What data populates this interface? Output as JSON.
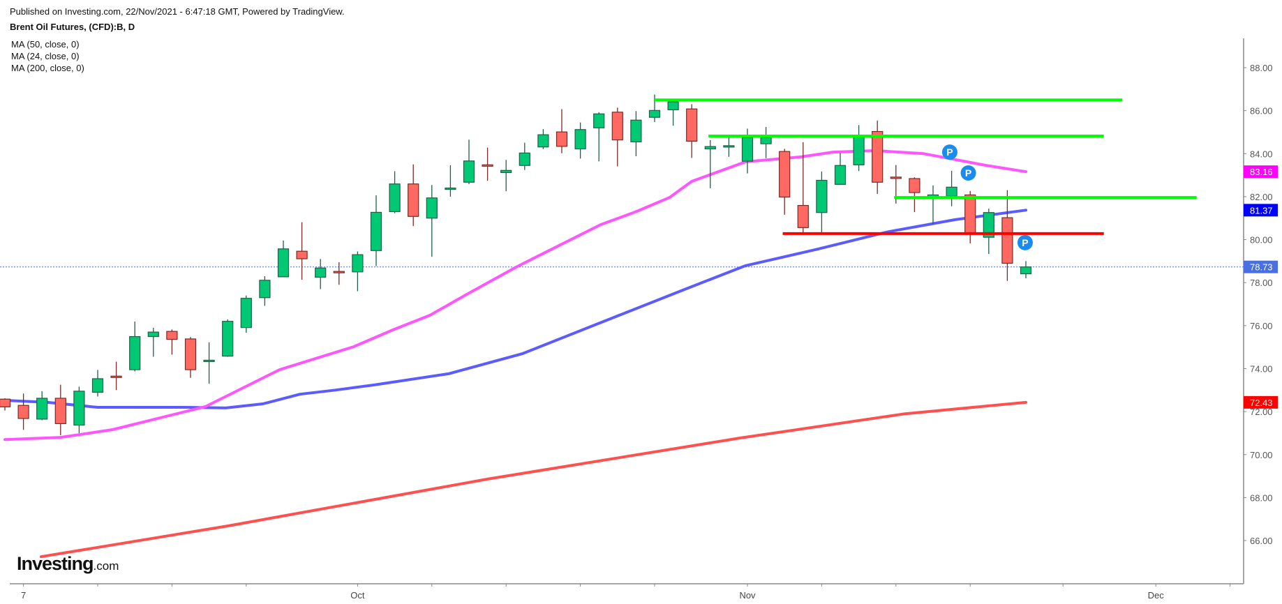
{
  "header": {
    "published": "Published on Investing.com, 22/Nov/2021 - 6:47:18 GMT, Powered by TradingView.",
    "title": "Brent Oil Futures, (CFD):B, D",
    "indicators": [
      "MA (50, close, 0)",
      "MA (24, close, 0)",
      "MA (200, close, 0)"
    ]
  },
  "logo": {
    "main": "Investing",
    "suffix": ".com"
  },
  "chart_data": {
    "type": "candlestick",
    "title": "Brent Oil Futures, (CFD):B, D",
    "ylim": [
      64.2,
      89.4
    ],
    "y_ticks": [
      "66.00",
      "68.00",
      "70.00",
      "72.00",
      "74.00",
      "76.00",
      "78.00",
      "80.00",
      "82.00",
      "84.00",
      "86.00",
      "88.00"
    ],
    "x_ticks": [
      {
        "index": 2.0,
        "label": "7"
      },
      {
        "index": 6.0,
        "label": ""
      },
      {
        "index": 10.0,
        "label": ""
      },
      {
        "index": 14.0,
        "label": ""
      },
      {
        "index": 20.0,
        "label": "Oct"
      },
      {
        "index": 24.0,
        "label": ""
      },
      {
        "index": 28.0,
        "label": ""
      },
      {
        "index": 32.0,
        "label": ""
      },
      {
        "index": 36.0,
        "label": ""
      },
      {
        "index": 41.0,
        "label": "Nov"
      },
      {
        "index": 45.0,
        "label": ""
      },
      {
        "index": 49.0,
        "label": ""
      },
      {
        "index": 53.0,
        "label": ""
      },
      {
        "index": 58.0,
        "label": ""
      },
      {
        "index": 63.0,
        "label": "Dec"
      },
      {
        "index": 67.0,
        "label": ""
      }
    ],
    "x_range": [
      0.8,
      67.7
    ],
    "candles_ohlc": [
      [
        72.58,
        72.62,
        72.05,
        72.22
      ],
      [
        72.29,
        72.84,
        71.15,
        71.68
      ],
      [
        71.65,
        72.95,
        71.6,
        72.62
      ],
      [
        72.62,
        73.25,
        70.9,
        71.44
      ],
      [
        71.37,
        73.16,
        71.0,
        72.95
      ],
      [
        72.9,
        73.94,
        72.7,
        73.53
      ],
      [
        73.65,
        74.32,
        73.0,
        73.62
      ],
      [
        73.95,
        76.19,
        73.87,
        75.49
      ],
      [
        75.49,
        75.9,
        74.55,
        75.7
      ],
      [
        75.73,
        75.82,
        74.65,
        75.36
      ],
      [
        75.38,
        75.47,
        73.57,
        73.95
      ],
      [
        74.36,
        75.22,
        73.3,
        74.39
      ],
      [
        74.58,
        76.29,
        74.55,
        76.2
      ],
      [
        75.91,
        77.4,
        75.67,
        77.27
      ],
      [
        77.3,
        78.3,
        76.92,
        78.11
      ],
      [
        78.27,
        79.96,
        78.27,
        79.57
      ],
      [
        79.46,
        80.81,
        78.13,
        79.11
      ],
      [
        78.25,
        79.1,
        77.7,
        78.68
      ],
      [
        78.52,
        78.95,
        77.9,
        78.48
      ],
      [
        78.5,
        79.45,
        77.6,
        79.3
      ],
      [
        79.49,
        82.06,
        78.77,
        81.27
      ],
      [
        81.3,
        83.18,
        81.23,
        82.59
      ],
      [
        82.59,
        83.5,
        80.63,
        81.08
      ],
      [
        81.0,
        82.54,
        79.2,
        81.94
      ],
      [
        82.36,
        83.46,
        82.0,
        82.4
      ],
      [
        82.67,
        84.65,
        82.58,
        83.66
      ],
      [
        83.48,
        84.28,
        82.74,
        83.46
      ],
      [
        83.12,
        83.71,
        82.25,
        83.22
      ],
      [
        83.45,
        84.51,
        83.24,
        84.03
      ],
      [
        84.31,
        85.14,
        84.21,
        84.88
      ],
      [
        85.01,
        86.07,
        84.02,
        84.34
      ],
      [
        84.22,
        85.45,
        83.77,
        85.12
      ],
      [
        85.2,
        85.93,
        83.64,
        85.85
      ],
      [
        85.93,
        86.14,
        83.41,
        84.64
      ],
      [
        84.55,
        85.98,
        83.88,
        85.56
      ],
      [
        85.69,
        86.75,
        85.47,
        86.01
      ],
      [
        86.04,
        86.53,
        85.3,
        86.41
      ],
      [
        86.08,
        86.3,
        83.8,
        84.58
      ],
      [
        84.22,
        84.63,
        82.39,
        84.33
      ],
      [
        84.35,
        84.87,
        83.85,
        84.37
      ],
      [
        83.65,
        85.16,
        83.08,
        84.74
      ],
      [
        84.46,
        85.24,
        83.79,
        84.75
      ],
      [
        84.1,
        84.22,
        81.16,
        81.98
      ],
      [
        81.59,
        84.53,
        80.22,
        80.56
      ],
      [
        81.26,
        83.17,
        80.3,
        82.76
      ],
      [
        82.57,
        84.03,
        82.57,
        83.45
      ],
      [
        83.48,
        85.33,
        83.19,
        84.78
      ],
      [
        85.03,
        85.54,
        82.13,
        82.67
      ],
      [
        82.91,
        83.47,
        81.68,
        82.89
      ],
      [
        82.84,
        82.9,
        81.28,
        82.19
      ],
      [
        81.95,
        82.52,
        80.71,
        82.08
      ],
      [
        82.02,
        83.2,
        81.55,
        82.44
      ],
      [
        82.08,
        82.26,
        79.82,
        80.27
      ],
      [
        80.11,
        81.44,
        79.33,
        81.26
      ],
      [
        81.02,
        82.3,
        78.08,
        78.9
      ],
      [
        78.41,
        79.0,
        78.2,
        78.73
      ]
    ],
    "series": [
      {
        "name": "MA (50, close, 0)",
        "color": "#5b5bff",
        "last_label": "81.37",
        "label_bg": "#0000ff",
        "points": [
          [
            1.1,
            72.52
          ],
          [
            3.3,
            72.43
          ],
          [
            6.0,
            72.2
          ],
          [
            10.8,
            72.2
          ],
          [
            12.9,
            72.17
          ],
          [
            14.9,
            72.36
          ],
          [
            16.9,
            72.81
          ],
          [
            18.8,
            73.0
          ],
          [
            20.9,
            73.24
          ],
          [
            24.9,
            73.76
          ],
          [
            28.9,
            74.7
          ],
          [
            34.0,
            76.45
          ],
          [
            37.6,
            77.68
          ],
          [
            40.9,
            78.79
          ],
          [
            44.8,
            79.56
          ],
          [
            48.6,
            80.37
          ],
          [
            52.2,
            80.93
          ],
          [
            56.0,
            81.37
          ]
        ]
      },
      {
        "name": "MA (24, close, 0)",
        "color": "#ff55ff",
        "last_label": "83.16",
        "label_bg": "#ff00ff",
        "points": [
          [
            1.0,
            70.7
          ],
          [
            4.0,
            70.8
          ],
          [
            6.8,
            71.16
          ],
          [
            11.8,
            72.23
          ],
          [
            15.8,
            73.95
          ],
          [
            19.8,
            75.02
          ],
          [
            21.9,
            75.8
          ],
          [
            23.9,
            76.48
          ],
          [
            25.9,
            77.46
          ],
          [
            28.6,
            78.75
          ],
          [
            33.1,
            80.7
          ],
          [
            35.0,
            81.3
          ],
          [
            36.8,
            81.96
          ],
          [
            38.0,
            82.71
          ],
          [
            40.9,
            83.62
          ],
          [
            43.9,
            83.85
          ],
          [
            45.6,
            84.07
          ],
          [
            47.9,
            84.14
          ],
          [
            50.5,
            84.0
          ],
          [
            53.8,
            83.46
          ],
          [
            56.0,
            83.16
          ]
        ]
      },
      {
        "name": "MA (200, close, 0)",
        "color": "#ff5050",
        "last_label": "72.43",
        "label_bg": "#ff0000",
        "points": [
          [
            2.95,
            65.25
          ],
          [
            13.0,
            66.68
          ],
          [
            27.0,
            68.86
          ],
          [
            40.6,
            70.77
          ],
          [
            49.5,
            71.9
          ],
          [
            56.0,
            72.43
          ]
        ]
      }
    ],
    "last_price": {
      "value": 78.73,
      "label": "78.73",
      "label_bg": "#4a6fe0"
    },
    "drawn_levels": [
      {
        "price": 86.5,
        "from": 36.0,
        "to": 61.2,
        "color": "#00ff00"
      },
      {
        "price": 84.82,
        "from": 38.9,
        "to": 60.2,
        "color": "#00ff00"
      },
      {
        "price": 81.96,
        "from": 48.9,
        "to": 65.2,
        "color": "#00ff00"
      },
      {
        "price": 80.28,
        "from": 42.9,
        "to": 60.2,
        "color": "#ff0000"
      }
    ],
    "markers": [
      {
        "index": 51.9,
        "price": 84.07,
        "text": "P"
      },
      {
        "index": 52.9,
        "price": 83.1,
        "text": "P"
      },
      {
        "index": 55.96,
        "price": 79.86,
        "text": "P"
      }
    ],
    "colors": {
      "up": "#00c873",
      "down": "#ff6961",
      "up_border": "#1e6046",
      "down_border": "#7a2a26",
      "axis": "#888888",
      "marker": "#1a8cf0"
    }
  }
}
